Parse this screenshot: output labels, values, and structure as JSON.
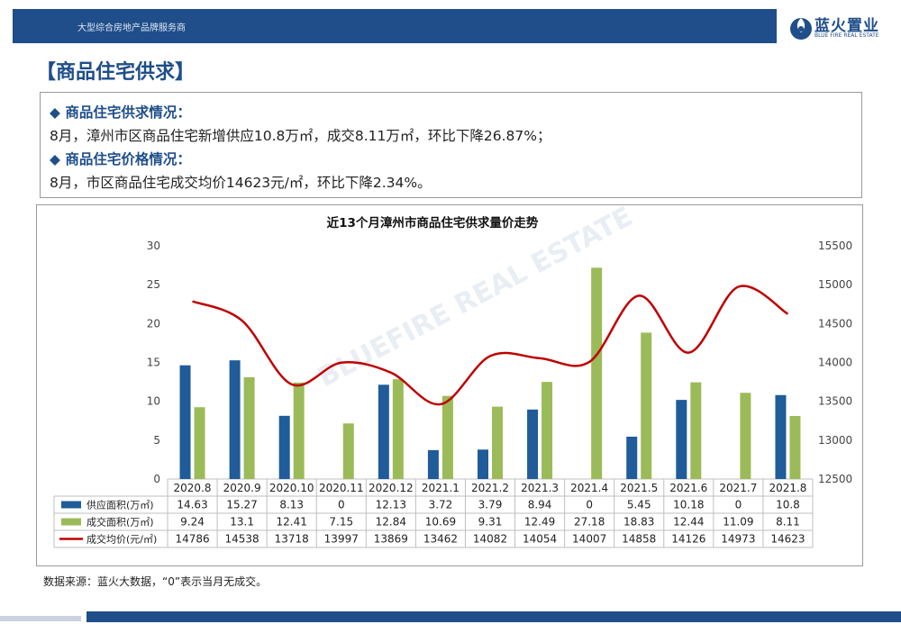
{
  "header": {
    "company_line": "大型综合房地产品牌服务商",
    "logo_name": "蓝火置业",
    "logo_sub": "BLUE FIRE REAL ESTATE"
  },
  "section_title": "【商品住宅供求】",
  "summary": {
    "supply_heading": "◆  商品住宅供求情况：",
    "supply_text": "8月，漳州市区商品住宅新增供应10.8万㎡，成交8.11万㎡，环比下降26.87%；",
    "price_heading": "◆  商品住宅价格情况：",
    "price_text": "8月，市区商品住宅成交均价14623元/㎡，环比下降2.34%。"
  },
  "watermark": "BLUEFIRE REAL ESTATE",
  "source_note": "数据来源：蓝火大数据，“0”表示当月无成交。",
  "colors": {
    "brand": "#1f4e8a",
    "supply": "#1f5c99",
    "deal": "#9bbb59",
    "price": "#c00000"
  },
  "chart_data": {
    "type": "bar",
    "title": "近13个月漳州市商品住宅供求量价走势",
    "categories": [
      "2020.8",
      "2020.9",
      "2020.10",
      "2020.11",
      "2020.12",
      "2021.1",
      "2021.2",
      "2021.3",
      "2021.4",
      "2021.5",
      "2021.6",
      "2021.7",
      "2021.8"
    ],
    "series": [
      {
        "name": "供应面积(万㎡)",
        "kind": "bar",
        "axis": "left",
        "color": "#1f5c99",
        "values": [
          14.63,
          15.27,
          8.13,
          0,
          12.13,
          3.72,
          3.79,
          8.94,
          0,
          5.45,
          10.18,
          0,
          10.8
        ]
      },
      {
        "name": "成交面积(万㎡)",
        "kind": "bar",
        "axis": "left",
        "color": "#9bbb59",
        "values": [
          9.24,
          13.1,
          12.41,
          7.15,
          12.84,
          10.69,
          9.31,
          12.49,
          27.18,
          18.83,
          12.44,
          11.09,
          8.11
        ]
      },
      {
        "name": "成交均价(元/㎡)",
        "kind": "line",
        "axis": "right",
        "color": "#c00000",
        "values": [
          14786,
          14538,
          13718,
          13997,
          13869,
          13462,
          14082,
          14054,
          14007,
          14858,
          14126,
          14973,
          14623
        ]
      }
    ],
    "yleft": {
      "min": 0,
      "max": 30,
      "ticks": [
        0,
        5,
        10,
        15,
        20,
        25,
        30
      ]
    },
    "yright": {
      "min": 12500,
      "max": 15500,
      "ticks": [
        12500,
        13000,
        13500,
        14000,
        14500,
        15000,
        15500
      ]
    },
    "data_table": true
  }
}
